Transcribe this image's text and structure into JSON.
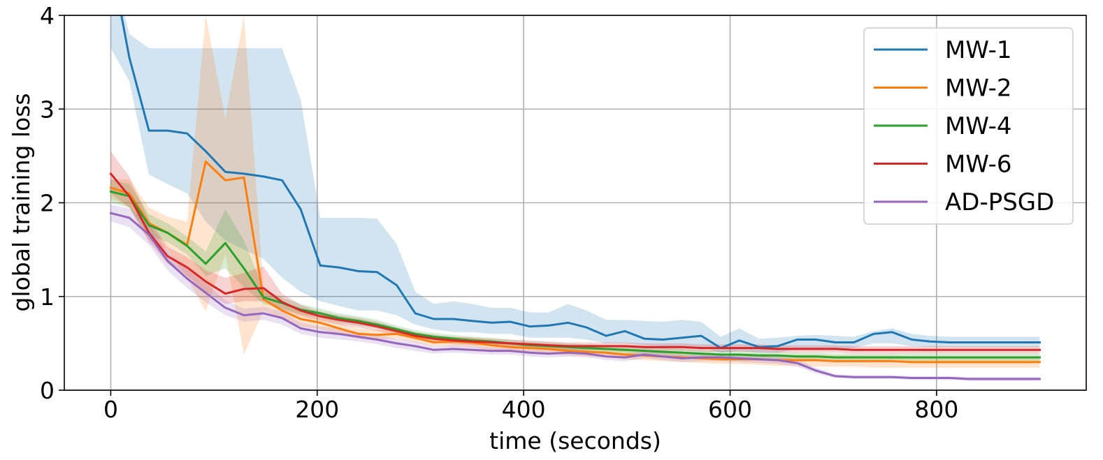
{
  "chart_data": {
    "type": "line",
    "title": "",
    "xlabel": "time (seconds)",
    "ylabel": "global training loss",
    "xlim": [
      -45,
      945
    ],
    "ylim": [
      0,
      4
    ],
    "xticks": [
      0,
      200,
      400,
      600,
      800
    ],
    "yticks": [
      0,
      1,
      2,
      3,
      4
    ],
    "x_tick_labels": [
      "0",
      "200",
      "400",
      "600",
      "800"
    ],
    "y_tick_labels": [
      "0",
      "1",
      "2",
      "3",
      "4"
    ],
    "grid": true,
    "legend_position": "top-right",
    "shaded_band": "variability band around each series",
    "series": [
      {
        "name": "MW-1",
        "color": "#1f77b4",
        "x": [
          0,
          18,
          37,
          55,
          74,
          92,
          111,
          129,
          148,
          166,
          184,
          203,
          221,
          240,
          258,
          277,
          295,
          313,
          332,
          350,
          369,
          387,
          406,
          424,
          443,
          461,
          480,
          498,
          517,
          535,
          554,
          572,
          591,
          609,
          628,
          646,
          665,
          683,
          702,
          720,
          739,
          757,
          776,
          794,
          813,
          831,
          850,
          868,
          887,
          900
        ],
        "values": [
          4.6,
          3.55,
          2.77,
          2.77,
          2.74,
          2.55,
          2.33,
          2.31,
          2.28,
          2.24,
          1.93,
          1.33,
          1.31,
          1.27,
          1.26,
          1.12,
          0.82,
          0.76,
          0.76,
          0.74,
          0.72,
          0.73,
          0.68,
          0.69,
          0.72,
          0.67,
          0.58,
          0.63,
          0.55,
          0.54,
          0.56,
          0.58,
          0.45,
          0.53,
          0.46,
          0.47,
          0.54,
          0.54,
          0.51,
          0.51,
          0.6,
          0.62,
          0.54,
          0.52,
          0.51,
          0.51,
          0.51,
          0.51,
          0.51,
          0.51
        ],
        "lower": [
          3.65,
          3.3,
          2.3,
          2.2,
          2.1,
          1.8,
          1.6,
          1.5,
          1.4,
          1.2,
          1.05,
          0.95,
          0.9,
          0.85,
          0.85,
          0.8,
          0.7,
          0.65,
          0.62,
          0.62,
          0.6,
          0.6,
          0.56,
          0.56,
          0.56,
          0.54,
          0.5,
          0.5,
          0.48,
          0.47,
          0.46,
          0.46,
          0.4,
          0.42,
          0.4,
          0.4,
          0.44,
          0.44,
          0.44,
          0.45,
          0.5,
          0.5,
          0.47,
          0.46,
          0.46,
          0.46,
          0.46,
          0.46,
          0.46,
          0.46
        ],
        "upper": [
          4.6,
          3.8,
          3.65,
          3.65,
          3.65,
          3.65,
          3.65,
          3.65,
          3.65,
          3.65,
          3.1,
          1.84,
          1.84,
          1.84,
          1.83,
          1.56,
          1.05,
          0.92,
          0.95,
          0.92,
          0.88,
          0.88,
          0.83,
          0.83,
          0.92,
          0.85,
          0.75,
          0.75,
          0.74,
          0.73,
          0.75,
          0.73,
          0.57,
          0.66,
          0.55,
          0.56,
          0.58,
          0.59,
          0.58,
          0.57,
          0.63,
          0.66,
          0.6,
          0.58,
          0.57,
          0.57,
          0.57,
          0.57,
          0.57,
          0.57
        ]
      },
      {
        "name": "MW-2",
        "color": "#ff7f0e",
        "x": [
          0,
          18,
          37,
          55,
          74,
          92,
          111,
          129,
          148,
          166,
          184,
          203,
          221,
          240,
          258,
          277,
          295,
          313,
          332,
          350,
          369,
          387,
          406,
          424,
          443,
          461,
          480,
          498,
          517,
          535,
          554,
          572,
          591,
          609,
          628,
          646,
          665,
          683,
          702,
          720,
          739,
          757,
          776,
          794,
          813,
          831,
          850,
          868,
          887,
          900
        ],
        "values": [
          2.16,
          2.1,
          1.78,
          1.68,
          1.55,
          2.44,
          2.24,
          2.27,
          0.97,
          0.85,
          0.76,
          0.72,
          0.66,
          0.6,
          0.59,
          0.6,
          0.56,
          0.51,
          0.52,
          0.51,
          0.48,
          0.46,
          0.45,
          0.44,
          0.42,
          0.41,
          0.4,
          0.38,
          0.37,
          0.36,
          0.35,
          0.34,
          0.33,
          0.33,
          0.33,
          0.32,
          0.32,
          0.32,
          0.31,
          0.31,
          0.31,
          0.31,
          0.3,
          0.3,
          0.3,
          0.3,
          0.3,
          0.3,
          0.3,
          0.3
        ],
        "lower": [
          2.05,
          1.95,
          1.6,
          1.5,
          1.2,
          0.84,
          1.45,
          0.38,
          0.85,
          0.75,
          0.68,
          0.65,
          0.6,
          0.55,
          0.54,
          0.55,
          0.51,
          0.47,
          0.47,
          0.46,
          0.43,
          0.41,
          0.4,
          0.39,
          0.37,
          0.36,
          0.35,
          0.33,
          0.32,
          0.31,
          0.3,
          0.29,
          0.28,
          0.28,
          0.27,
          0.26,
          0.26,
          0.25,
          0.25,
          0.25,
          0.24,
          0.24,
          0.24,
          0.24,
          0.24,
          0.24,
          0.24,
          0.24,
          0.24,
          0.24
        ],
        "upper": [
          2.25,
          2.25,
          1.95,
          1.85,
          1.8,
          4.0,
          2.9,
          4.0,
          1.1,
          0.95,
          0.84,
          0.79,
          0.72,
          0.66,
          0.64,
          0.65,
          0.6,
          0.56,
          0.57,
          0.56,
          0.53,
          0.51,
          0.5,
          0.49,
          0.47,
          0.46,
          0.45,
          0.43,
          0.43,
          0.42,
          0.41,
          0.4,
          0.39,
          0.39,
          0.39,
          0.38,
          0.38,
          0.38,
          0.37,
          0.37,
          0.37,
          0.37,
          0.36,
          0.36,
          0.36,
          0.36,
          0.36,
          0.36,
          0.36,
          0.36
        ]
      },
      {
        "name": "MW-4",
        "color": "#2ca02c",
        "x": [
          0,
          18,
          37,
          55,
          74,
          92,
          111,
          129,
          148,
          166,
          184,
          203,
          221,
          240,
          258,
          277,
          295,
          313,
          332,
          350,
          369,
          387,
          406,
          424,
          443,
          461,
          480,
          498,
          517,
          535,
          554,
          572,
          591,
          609,
          628,
          646,
          665,
          683,
          702,
          720,
          739,
          757,
          776,
          794,
          813,
          831,
          850,
          868,
          887,
          900
        ],
        "values": [
          2.12,
          2.07,
          1.76,
          1.68,
          1.54,
          1.35,
          1.57,
          1.3,
          0.99,
          0.93,
          0.86,
          0.82,
          0.77,
          0.74,
          0.7,
          0.65,
          0.6,
          0.57,
          0.55,
          0.53,
          0.52,
          0.5,
          0.48,
          0.47,
          0.46,
          0.45,
          0.44,
          0.43,
          0.42,
          0.41,
          0.4,
          0.39,
          0.38,
          0.38,
          0.37,
          0.37,
          0.36,
          0.36,
          0.35,
          0.35,
          0.35,
          0.35,
          0.35,
          0.35,
          0.35,
          0.35,
          0.35,
          0.35,
          0.35,
          0.35
        ],
        "lower": [
          2.0,
          1.95,
          1.65,
          1.58,
          1.45,
          1.22,
          1.3,
          1.1,
          0.92,
          0.87,
          0.81,
          0.77,
          0.72,
          0.69,
          0.66,
          0.61,
          0.56,
          0.53,
          0.51,
          0.49,
          0.48,
          0.46,
          0.44,
          0.43,
          0.42,
          0.41,
          0.4,
          0.39,
          0.38,
          0.37,
          0.36,
          0.35,
          0.34,
          0.34,
          0.33,
          0.33,
          0.32,
          0.32,
          0.31,
          0.31,
          0.31,
          0.31,
          0.31,
          0.31,
          0.31,
          0.31,
          0.31,
          0.31,
          0.31,
          0.31
        ],
        "upper": [
          2.25,
          2.2,
          1.88,
          1.78,
          1.64,
          1.48,
          1.93,
          1.6,
          1.08,
          0.99,
          0.92,
          0.87,
          0.82,
          0.79,
          0.75,
          0.69,
          0.64,
          0.61,
          0.59,
          0.57,
          0.56,
          0.54,
          0.52,
          0.51,
          0.5,
          0.49,
          0.48,
          0.47,
          0.46,
          0.45,
          0.44,
          0.43,
          0.42,
          0.42,
          0.41,
          0.41,
          0.4,
          0.4,
          0.39,
          0.39,
          0.39,
          0.39,
          0.39,
          0.39,
          0.39,
          0.39,
          0.39,
          0.39,
          0.39,
          0.39
        ]
      },
      {
        "name": "MW-6",
        "color": "#d62728",
        "x": [
          0,
          18,
          37,
          55,
          74,
          92,
          111,
          129,
          148,
          166,
          184,
          203,
          221,
          240,
          258,
          277,
          295,
          313,
          332,
          350,
          369,
          387,
          406,
          424,
          443,
          461,
          480,
          498,
          517,
          535,
          554,
          572,
          591,
          609,
          628,
          646,
          665,
          683,
          702,
          720,
          739,
          757,
          776,
          794,
          813,
          831,
          850,
          868,
          887,
          900
        ],
        "values": [
          2.31,
          2.07,
          1.68,
          1.43,
          1.31,
          1.16,
          1.03,
          1.08,
          1.09,
          0.94,
          0.85,
          0.79,
          0.75,
          0.72,
          0.68,
          0.63,
          0.58,
          0.55,
          0.53,
          0.52,
          0.51,
          0.5,
          0.49,
          0.48,
          0.47,
          0.47,
          0.47,
          0.47,
          0.46,
          0.46,
          0.46,
          0.45,
          0.45,
          0.45,
          0.45,
          0.44,
          0.44,
          0.44,
          0.44,
          0.43,
          0.43,
          0.43,
          0.43,
          0.43,
          0.43,
          0.43,
          0.43,
          0.43,
          0.43,
          0.43
        ],
        "lower": [
          2.1,
          1.95,
          1.58,
          1.35,
          1.22,
          1.05,
          0.92,
          0.95,
          0.95,
          0.86,
          0.79,
          0.74,
          0.7,
          0.67,
          0.63,
          0.59,
          0.54,
          0.51,
          0.49,
          0.48,
          0.47,
          0.46,
          0.45,
          0.44,
          0.43,
          0.43,
          0.43,
          0.43,
          0.42,
          0.42,
          0.42,
          0.41,
          0.41,
          0.41,
          0.41,
          0.4,
          0.4,
          0.4,
          0.4,
          0.39,
          0.39,
          0.39,
          0.39,
          0.39,
          0.39,
          0.39,
          0.39,
          0.39,
          0.39,
          0.39
        ],
        "upper": [
          2.55,
          2.28,
          1.82,
          1.53,
          1.42,
          1.28,
          1.2,
          1.25,
          1.32,
          1.03,
          0.91,
          0.84,
          0.8,
          0.77,
          0.73,
          0.67,
          0.62,
          0.59,
          0.57,
          0.56,
          0.55,
          0.54,
          0.53,
          0.52,
          0.51,
          0.51,
          0.51,
          0.51,
          0.5,
          0.5,
          0.5,
          0.49,
          0.49,
          0.49,
          0.49,
          0.48,
          0.48,
          0.48,
          0.48,
          0.47,
          0.47,
          0.47,
          0.47,
          0.47,
          0.47,
          0.47,
          0.47,
          0.47,
          0.47,
          0.47
        ]
      },
      {
        "name": "AD-PSGD",
        "color": "#9467bd",
        "x": [
          0,
          18,
          37,
          55,
          74,
          92,
          111,
          129,
          148,
          166,
          184,
          203,
          221,
          240,
          258,
          277,
          295,
          313,
          332,
          350,
          369,
          387,
          406,
          424,
          443,
          461,
          480,
          498,
          517,
          535,
          554,
          572,
          591,
          609,
          628,
          646,
          665,
          683,
          702,
          720,
          739,
          757,
          776,
          794,
          813,
          831,
          850,
          868,
          887,
          900
        ],
        "values": [
          1.89,
          1.84,
          1.66,
          1.38,
          1.19,
          1.04,
          0.88,
          0.8,
          0.82,
          0.77,
          0.66,
          0.62,
          0.6,
          0.57,
          0.54,
          0.5,
          0.47,
          0.43,
          0.44,
          0.43,
          0.42,
          0.42,
          0.4,
          0.39,
          0.4,
          0.39,
          0.36,
          0.35,
          0.38,
          0.36,
          0.34,
          0.35,
          0.35,
          0.34,
          0.33,
          0.32,
          0.29,
          0.21,
          0.15,
          0.14,
          0.14,
          0.14,
          0.13,
          0.13,
          0.13,
          0.12,
          0.12,
          0.12,
          0.12,
          0.12
        ],
        "lower": [
          1.8,
          1.74,
          1.55,
          1.28,
          1.09,
          0.94,
          0.8,
          0.73,
          0.75,
          0.7,
          0.6,
          0.56,
          0.54,
          0.52,
          0.49,
          0.45,
          0.42,
          0.39,
          0.4,
          0.39,
          0.38,
          0.38,
          0.36,
          0.35,
          0.36,
          0.35,
          0.32,
          0.31,
          0.34,
          0.32,
          0.3,
          0.31,
          0.31,
          0.3,
          0.29,
          0.28,
          0.25,
          0.18,
          0.13,
          0.12,
          0.12,
          0.12,
          0.11,
          0.11,
          0.11,
          0.1,
          0.1,
          0.1,
          0.1,
          0.1
        ],
        "upper": [
          1.98,
          1.94,
          1.77,
          1.48,
          1.29,
          1.14,
          0.96,
          0.87,
          0.89,
          0.84,
          0.72,
          0.68,
          0.66,
          0.62,
          0.59,
          0.55,
          0.52,
          0.47,
          0.48,
          0.47,
          0.46,
          0.46,
          0.44,
          0.43,
          0.44,
          0.43,
          0.4,
          0.39,
          0.42,
          0.4,
          0.38,
          0.39,
          0.39,
          0.38,
          0.37,
          0.36,
          0.33,
          0.24,
          0.17,
          0.16,
          0.16,
          0.16,
          0.15,
          0.15,
          0.15,
          0.14,
          0.14,
          0.14,
          0.14,
          0.14
        ]
      }
    ]
  }
}
